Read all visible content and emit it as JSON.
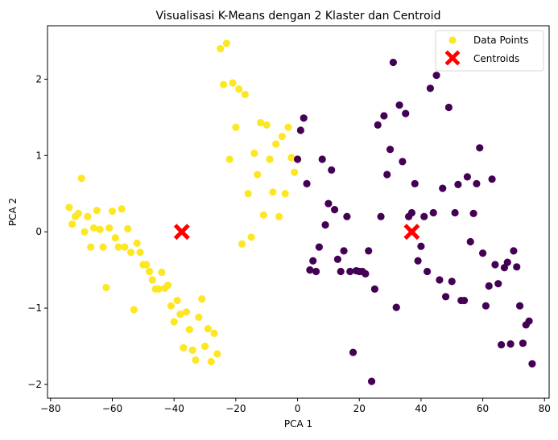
{
  "chart_data": {
    "type": "scatter",
    "title": "Visualisasi K-Means dengan 2 Klaster dan Centroid",
    "xlabel": "PCA 1",
    "ylabel": "PCA 2",
    "xlim": [
      -81,
      81.5
    ],
    "ylim": [
      -2.18,
      2.7
    ],
    "xticks": [
      -80,
      -60,
      -40,
      -20,
      0,
      20,
      40,
      60,
      80
    ],
    "yticks": [
      -2,
      -1,
      0,
      1,
      2
    ],
    "grid": false,
    "legend": {
      "placement": "top-right",
      "entries": [
        {
          "label": "Data Points",
          "color": "#fde725",
          "marker": "circle"
        },
        {
          "label": "Centroids",
          "color": "#ff0000",
          "marker": "x"
        }
      ]
    },
    "series": [
      {
        "cluster": 0,
        "color": "#fde725",
        "points": [
          [
            -74,
            0.32
          ],
          [
            -73,
            0.1
          ],
          [
            -72,
            0.2
          ],
          [
            -71,
            0.24
          ],
          [
            -70,
            0.7
          ],
          [
            -69,
            0
          ],
          [
            -68,
            0.2
          ],
          [
            -67,
            -0.2
          ],
          [
            -66,
            0.05
          ],
          [
            -65,
            0.28
          ],
          [
            -64,
            0.03
          ],
          [
            -63,
            -0.2
          ],
          [
            -62,
            -0.73
          ],
          [
            -61,
            0.05
          ],
          [
            -60,
            0.27
          ],
          [
            -59,
            -0.08
          ],
          [
            -58,
            -0.2
          ],
          [
            -57,
            0.3
          ],
          [
            -56,
            -0.2
          ],
          [
            -55,
            0.04
          ],
          [
            -54,
            -0.27
          ],
          [
            -53,
            -1.02
          ],
          [
            -52,
            -0.15
          ],
          [
            -51,
            -0.27
          ],
          [
            -50,
            -0.43
          ],
          [
            -49,
            -0.43
          ],
          [
            -48,
            -0.52
          ],
          [
            -47,
            -0.63
          ],
          [
            -46,
            -0.75
          ],
          [
            -45,
            -0.75
          ],
          [
            -44,
            -0.53
          ],
          [
            -43,
            -0.74
          ],
          [
            -42,
            -0.7
          ],
          [
            -41,
            -0.97
          ],
          [
            -40,
            -1.18
          ],
          [
            -39,
            -0.9
          ],
          [
            -38,
            -1.08
          ],
          [
            -37,
            -1.52
          ],
          [
            -36,
            -1.05
          ],
          [
            -35,
            -1.28
          ],
          [
            -34,
            -1.55
          ],
          [
            -33,
            -1.68
          ],
          [
            -32,
            -1.12
          ],
          [
            -31,
            -0.88
          ],
          [
            -30,
            -1.5
          ],
          [
            -29,
            -1.27
          ],
          [
            -28,
            -1.7
          ],
          [
            -27,
            -1.33
          ],
          [
            -26,
            -1.6
          ],
          [
            -25,
            2.4
          ],
          [
            -24,
            1.93
          ],
          [
            -23,
            2.47
          ],
          [
            -22,
            0.95
          ],
          [
            -21,
            1.95
          ],
          [
            -20,
            1.37
          ],
          [
            -19,
            1.87
          ],
          [
            -18,
            -0.16
          ],
          [
            -17,
            1.8
          ],
          [
            -16,
            0.5
          ],
          [
            -15,
            -0.07
          ],
          [
            -14,
            1.03
          ],
          [
            -13,
            0.75
          ],
          [
            -12,
            1.43
          ],
          [
            -11,
            0.22
          ],
          [
            -10,
            1.4
          ],
          [
            -9,
            0.95
          ],
          [
            -8,
            0.52
          ],
          [
            -7,
            1.15
          ],
          [
            -6,
            0.2
          ],
          [
            -5,
            1.25
          ],
          [
            -4,
            0.5
          ],
          [
            -3,
            1.37
          ],
          [
            -2,
            0.97
          ],
          [
            -1,
            0.78
          ]
        ]
      },
      {
        "cluster": 1,
        "color": "#440154",
        "points": [
          [
            0,
            0.95
          ],
          [
            1,
            1.33
          ],
          [
            2,
            1.49
          ],
          [
            3,
            0.63
          ],
          [
            4,
            -0.5
          ],
          [
            5,
            -0.38
          ],
          [
            6,
            -0.52
          ],
          [
            7,
            -0.2
          ],
          [
            8,
            0.95
          ],
          [
            9,
            0.09
          ],
          [
            10,
            0.37
          ],
          [
            11,
            0.81
          ],
          [
            12,
            0.29
          ],
          [
            13,
            -0.36
          ],
          [
            14,
            -0.52
          ],
          [
            15,
            -0.25
          ],
          [
            16,
            0.2
          ],
          [
            17,
            -0.52
          ],
          [
            18,
            -1.58
          ],
          [
            19,
            -0.51
          ],
          [
            20,
            -0.52
          ],
          [
            21,
            -0.52
          ],
          [
            22,
            -0.55
          ],
          [
            23,
            -0.25
          ],
          [
            24,
            -1.96
          ],
          [
            25,
            -0.75
          ],
          [
            26,
            1.4
          ],
          [
            27,
            0.2
          ],
          [
            28,
            1.52
          ],
          [
            29,
            0.75
          ],
          [
            30,
            1.08
          ],
          [
            31,
            2.22
          ],
          [
            32,
            -0.99
          ],
          [
            33,
            1.66
          ],
          [
            34,
            0.92
          ],
          [
            35,
            1.55
          ],
          [
            36,
            0.2
          ],
          [
            37,
            0.25
          ],
          [
            38,
            0.63
          ],
          [
            39,
            -0.38
          ],
          [
            40,
            -0.19
          ],
          [
            41,
            0.2
          ],
          [
            42,
            -0.52
          ],
          [
            43,
            1.88
          ],
          [
            44,
            0.25
          ],
          [
            45,
            2.05
          ],
          [
            46,
            -0.63
          ],
          [
            47,
            0.57
          ],
          [
            48,
            -0.85
          ],
          [
            49,
            1.63
          ],
          [
            50,
            -0.65
          ],
          [
            51,
            0.25
          ],
          [
            52,
            0.62
          ],
          [
            53,
            -0.9
          ],
          [
            54,
            -0.9
          ],
          [
            55,
            0.72
          ],
          [
            56,
            -0.13
          ],
          [
            57,
            0.24
          ],
          [
            58,
            0.63
          ],
          [
            59,
            1.1
          ],
          [
            60,
            -0.28
          ],
          [
            61,
            -0.97
          ],
          [
            62,
            -0.71
          ],
          [
            63,
            0.69
          ],
          [
            64,
            -0.43
          ],
          [
            65,
            -0.68
          ],
          [
            66,
            -1.48
          ],
          [
            67,
            -0.47
          ],
          [
            68,
            -0.4
          ],
          [
            69,
            -1.47
          ],
          [
            70,
            -0.25
          ],
          [
            71,
            -0.46
          ],
          [
            72,
            -0.97
          ],
          [
            73,
            -1.46
          ],
          [
            74,
            -1.22
          ],
          [
            75,
            -1.17
          ],
          [
            76,
            -1.73
          ]
        ]
      }
    ],
    "centroids": [
      {
        "x": -37.5,
        "y": 0.0
      },
      {
        "x": 37.0,
        "y": 0.0
      }
    ]
  }
}
